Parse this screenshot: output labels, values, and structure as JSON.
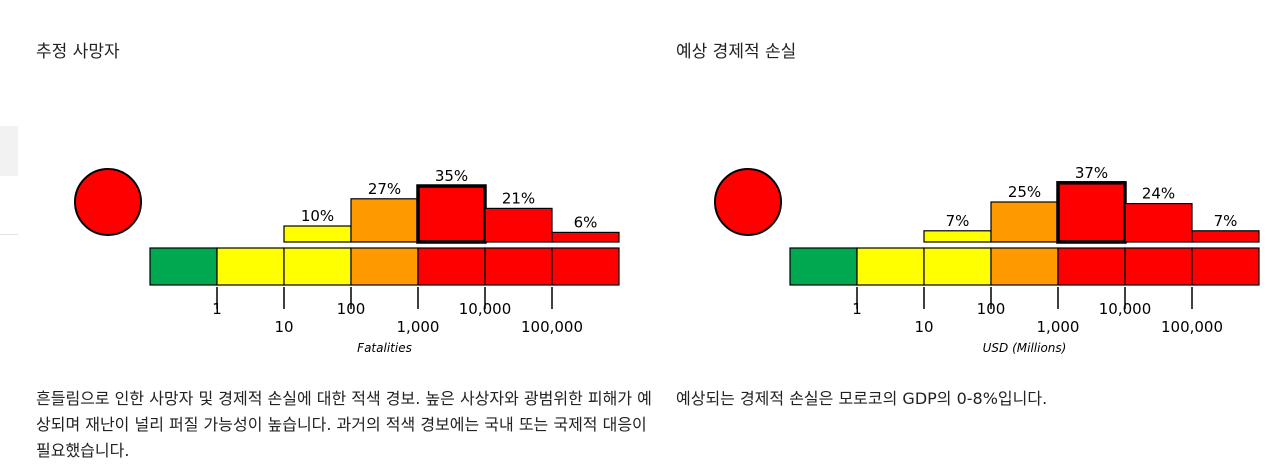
{
  "fatalities": {
    "title": "추정 사망자",
    "description": "흔들림으로 인한 사망자 및 경제적 손실에 대한 적색 경보. 높은 사상자와 광범위한 피해가 예상되며 재난이 널리 퍼질 가능성이 높습니다. 과거의 적색 경보에는 국내 또는 국제적 대응이 필요했습니다.",
    "alert_color": "#ff0000"
  },
  "economic": {
    "title": "예상 경제적 손실",
    "description": "예상되는 경제적 손실은 모로코의 GDP의 0-8%입니다.",
    "alert_color": "#ff0000"
  },
  "chart_data": [
    {
      "type": "bar",
      "xlabel": "Fatalities",
      "bins": [
        "0-1",
        "1-10",
        "10-100",
        "100-1,000",
        "1,000-10,000",
        "10,000-100,000",
        "100,000+"
      ],
      "values": [
        null,
        null,
        10,
        27,
        35,
        21,
        6
      ],
      "labels": [
        "",
        "",
        "10%",
        "27%",
        "35%",
        "21%",
        "6%"
      ],
      "highlight_index": 4,
      "tick_labels": [
        "1",
        "10",
        "100",
        "1,000",
        "10,000",
        "100,000"
      ],
      "bin_colors": [
        "#00a84f",
        "#ffff00",
        "#ffff00",
        "#ff9900",
        "#ff0000",
        "#ff0000",
        "#ff0000"
      ],
      "unit": "%"
    },
    {
      "type": "bar",
      "xlabel": "USD (Millions)",
      "bins": [
        "0-1",
        "1-10",
        "10-100",
        "100-1,000",
        "1,000-10,000",
        "10,000-100,000",
        "100,000+"
      ],
      "values": [
        null,
        null,
        7,
        25,
        37,
        24,
        7
      ],
      "labels": [
        "",
        "",
        "7%",
        "25%",
        "37%",
        "24%",
        "7%"
      ],
      "highlight_index": 4,
      "tick_labels": [
        "1",
        "10",
        "100",
        "1,000",
        "10,000",
        "100,000"
      ],
      "bin_colors": [
        "#00a84f",
        "#ffff00",
        "#ffff00",
        "#ff9900",
        "#ff0000",
        "#ff0000",
        "#ff0000"
      ],
      "unit": "%"
    }
  ]
}
